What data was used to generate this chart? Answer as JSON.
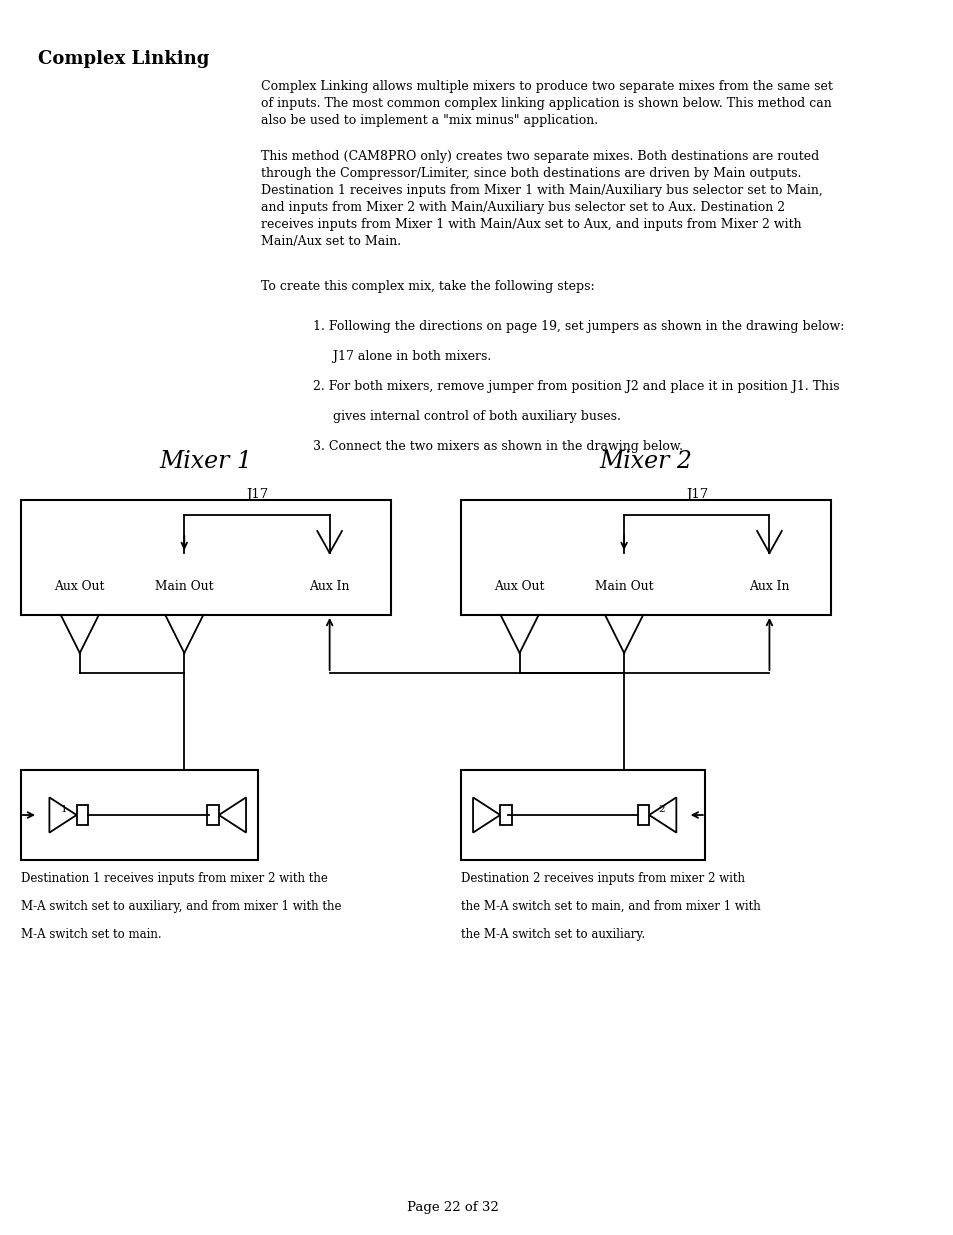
{
  "title": "Complex Linking",
  "page_number": "Page 22 of 32",
  "background_color": "#ffffff",
  "text_color": "#000000",
  "para1": "Complex Linking allows multiple mixers to produce two separate mixes from the same set of inputs. The most common complex linking application is shown below. This method can also be used to implement a \"mix minus\" application.",
  "para2": "This method (CAM8PRO only) creates two separate mixes. Both destinations are routed through the Compressor/Limiter, since both destinations are driven by Main outputs. Destination 1 receives inputs from Mixer 1 with Main/Auxiliary bus selector set to Main, and inputs from Mixer 2 with Main/Auxiliary bus selector set to Aux. Destination 2 receives inputs from Mixer 1 with Main/Aux set to Aux, and inputs from Mixer 2 with Main/Aux set to Main.",
  "para3": "To create this complex mix, take the following steps:",
  "step1a": "1. Following the directions on page 19, set jumpers as shown in the drawing below:",
  "step1b": "     J17 alone in both mixers.",
  "step2a": "2. For both mixers, remove jumper from position J2 and place it in position J1. This",
  "step2b": "     gives internal control of both auxiliary buses.",
  "step3": "3. Connect the two mixers as shown in the drawing below.",
  "mixer1_title": "Mixer 1",
  "mixer2_title": "Mixer 2",
  "j17_label": "J17",
  "aux_out_label": "Aux Out",
  "main_out_label": "Main Out",
  "aux_in_label": "Aux In",
  "dest1_caption_l1": "Destination 1 receives inputs from mixer 2 with the",
  "dest1_caption_l2": "M-A switch set to auxiliary, and from mixer 1 with the",
  "dest1_caption_l3": "M-A switch set to main.",
  "dest2_caption_l1": "Destination 2 receives inputs from mixer 2 with",
  "dest2_caption_l2": "the M-A switch set to main, and from mixer 1 with",
  "dest2_caption_l3": "the M-A switch set to auxiliary."
}
